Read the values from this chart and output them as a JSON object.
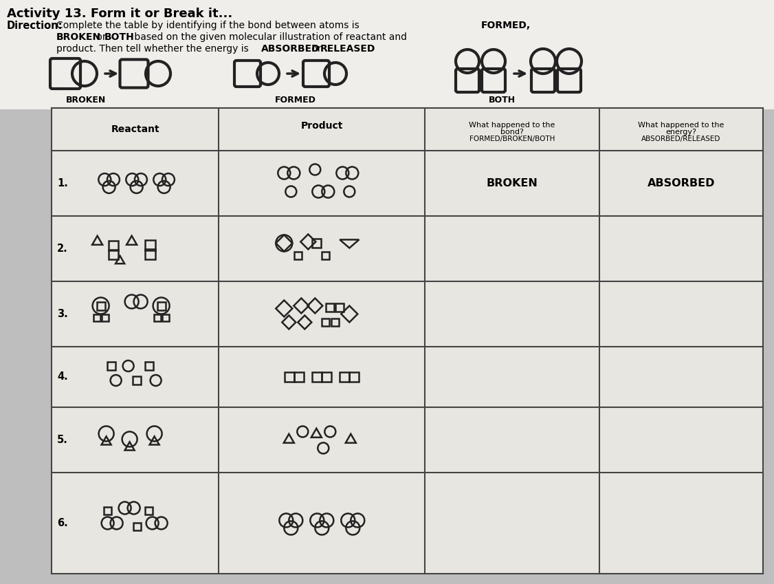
{
  "title_line1": "Activity 13. Form it or Break it...",
  "direction_label": "Direction:",
  "direction_text1": " Complete the table by identifying if the bond between atoms is ",
  "direction_bold1": "FORMED,",
  "direction_text2": "        ",
  "direction_bold2": "BROKEN",
  "direction_text2b": " or ",
  "direction_bold3": "BOTH",
  "direction_text2c": " based on the given molecular illustration of reactant and",
  "direction_text3": "        product. Then tell whether the energy is ",
  "direction_bold4": "ABSORBED",
  "direction_text3b": " or ",
  "direction_bold5": "RELEASED",
  "example_labels": [
    "BROKEN",
    "FORMED",
    "BOTH"
  ],
  "col_headers": [
    "Reactant",
    "Product",
    "What happened to the\nbond?\nFORMED/BROKEN/BOTH",
    "What happened to the\nenergy?\nABSORBED/RELEASED"
  ],
  "row_numbers": [
    "1.",
    "2.",
    "3.",
    "4.",
    "5.",
    "6."
  ],
  "row1_bond": "BROKEN",
  "row1_energy": "ABSORBED",
  "bg_color": "#c8c8c8",
  "table_bg": "#dcdcdc"
}
